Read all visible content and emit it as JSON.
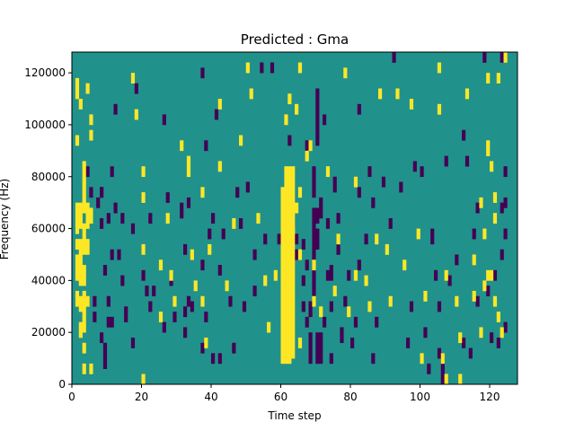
{
  "chart_data": {
    "type": "heatmap",
    "title": "Predicted : Gma",
    "xlabel": "Time step",
    "ylabel": "Frequency (Hz)",
    "xlim": [
      0,
      128
    ],
    "ylim": [
      0,
      128000
    ],
    "x_ticks": [
      0,
      20,
      40,
      60,
      80,
      100,
      120
    ],
    "y_ticks": [
      0,
      20000,
      40000,
      60000,
      80000,
      100000,
      120000
    ],
    "x_tick_labels": [
      "0",
      "20",
      "40",
      "60",
      "80",
      "100",
      "120"
    ],
    "y_tick_labels": [
      "0",
      "20000",
      "40000",
      "60000",
      "80000",
      "100000",
      "120000"
    ],
    "grid": false,
    "values_legend": {
      "low": -1,
      "mid": 0,
      "high": 1
    },
    "colors": {
      "low": "#440154",
      "mid": "#21918c",
      "high": "#fde725"
    },
    "cells": {
      "high": [
        [
          1,
          58000,
          70000
        ],
        [
          1,
          52000,
          56000
        ],
        [
          1,
          40000,
          50000
        ],
        [
          1,
          30000,
          36000
        ],
        [
          2,
          60000,
          70000
        ],
        [
          2,
          38000,
          56000
        ],
        [
          2,
          28000,
          34000
        ],
        [
          2,
          18000,
          24000
        ],
        [
          3,
          66000,
          86000
        ],
        [
          3,
          50000,
          62000
        ],
        [
          3,
          38000,
          46000
        ],
        [
          3,
          20000,
          36000
        ],
        [
          3,
          12000,
          16000
        ],
        [
          3,
          4000,
          8000
        ],
        [
          4,
          60000,
          70000
        ],
        [
          4,
          50000,
          56000
        ],
        [
          4,
          30000,
          34000
        ],
        [
          5,
          62000,
          68000
        ],
        [
          5,
          4000,
          8000
        ],
        [
          1,
          110000,
          118000
        ],
        [
          2,
          106000,
          110000
        ],
        [
          4,
          112000,
          116000
        ],
        [
          5,
          100000,
          104000
        ],
        [
          5,
          94000,
          98000
        ],
        [
          1,
          92000,
          96000
        ],
        [
          17,
          116000,
          120000
        ],
        [
          18,
          102000,
          106000
        ],
        [
          20,
          80000,
          84000
        ],
        [
          20,
          70000,
          74000
        ],
        [
          20,
          50000,
          54000
        ],
        [
          20,
          0,
          4000
        ],
        [
          25,
          44000,
          48000
        ],
        [
          25,
          24000,
          28000
        ],
        [
          27,
          62000,
          66000
        ],
        [
          28,
          40000,
          44000
        ],
        [
          29,
          30000,
          34000
        ],
        [
          31,
          90000,
          94000
        ],
        [
          33,
          84000,
          88000
        ],
        [
          33,
          80000,
          84000
        ],
        [
          34,
          48000,
          52000
        ],
        [
          35,
          36000,
          40000
        ],
        [
          37,
          72000,
          76000
        ],
        [
          37,
          30000,
          34000
        ],
        [
          38,
          14000,
          18000
        ],
        [
          39,
          50000,
          54000
        ],
        [
          42,
          106000,
          110000
        ],
        [
          42,
          82000,
          86000
        ],
        [
          44,
          36000,
          40000
        ],
        [
          46,
          60000,
          64000
        ],
        [
          48,
          92000,
          96000
        ],
        [
          50,
          120000,
          124000
        ],
        [
          51,
          110000,
          114000
        ],
        [
          53,
          62000,
          66000
        ],
        [
          55,
          38000,
          42000
        ],
        [
          56,
          20000,
          24000
        ],
        [
          58,
          40000,
          44000
        ],
        [
          60,
          8000,
          76000
        ],
        [
          61,
          8000,
          84000
        ],
        [
          62,
          8000,
          84000
        ],
        [
          63,
          10000,
          60000
        ],
        [
          63,
          58000,
          84000
        ],
        [
          61,
          100000,
          104000
        ],
        [
          62,
          108000,
          112000
        ],
        [
          64,
          104000,
          108000
        ],
        [
          64,
          66000,
          70000
        ],
        [
          65,
          14000,
          18000
        ],
        [
          65,
          48000,
          52000
        ],
        [
          65,
          72000,
          76000
        ],
        [
          65,
          120000,
          124000
        ],
        [
          67,
          86000,
          90000
        ],
        [
          68,
          90000,
          94000
        ],
        [
          69,
          30000,
          34000
        ],
        [
          69,
          44000,
          48000
        ],
        [
          71,
          26000,
          30000
        ],
        [
          73,
          80000,
          84000
        ],
        [
          75,
          34000,
          38000
        ],
        [
          76,
          54000,
          58000
        ],
        [
          78,
          118000,
          122000
        ],
        [
          79,
          26000,
          30000
        ],
        [
          81,
          40000,
          44000
        ],
        [
          81,
          76000,
          80000
        ],
        [
          84,
          38000,
          42000
        ],
        [
          85,
          28000,
          32000
        ],
        [
          87,
          54000,
          58000
        ],
        [
          88,
          110000,
          114000
        ],
        [
          90,
          50000,
          54000
        ],
        [
          91,
          30000,
          34000
        ],
        [
          93,
          110000,
          114000
        ],
        [
          95,
          44000,
          48000
        ],
        [
          97,
          106000,
          110000
        ],
        [
          99,
          56000,
          60000
        ],
        [
          100,
          8000,
          12000
        ],
        [
          101,
          32000,
          36000
        ],
        [
          105,
          120000,
          124000
        ],
        [
          105,
          104000,
          108000
        ],
        [
          106,
          8000,
          12000
        ],
        [
          107,
          0,
          4000
        ],
        [
          107,
          40000,
          44000
        ],
        [
          110,
          30000,
          34000
        ],
        [
          111,
          16000,
          20000
        ],
        [
          111,
          0,
          4000
        ],
        [
          113,
          110000,
          114000
        ],
        [
          115,
          46000,
          50000
        ],
        [
          117,
          68000,
          72000
        ],
        [
          117,
          18000,
          22000
        ],
        [
          119,
          40000,
          44000
        ],
        [
          118,
          56000,
          60000
        ],
        [
          119,
          88000,
          94000
        ],
        [
          120,
          82000,
          86000
        ],
        [
          121,
          70000,
          74000
        ],
        [
          121,
          30000,
          34000
        ],
        [
          121,
          62000,
          66000
        ],
        [
          122,
          116000,
          120000
        ],
        [
          123,
          18000,
          22000
        ],
        [
          124,
          124000,
          128000
        ],
        [
          120,
          40000,
          44000
        ],
        [
          119,
          116000,
          120000
        ],
        [
          122,
          24000,
          28000
        ],
        [
          115,
          32000,
          36000
        ],
        [
          118,
          36000,
          40000
        ]
      ],
      "low": [
        [
          4,
          80000,
          84000
        ],
        [
          5,
          72000,
          76000
        ],
        [
          7,
          68000,
          72000
        ],
        [
          8,
          72000,
          76000
        ],
        [
          8,
          16000,
          20000
        ],
        [
          8,
          60000,
          64000
        ],
        [
          9,
          6000,
          16000
        ],
        [
          9,
          42000,
          46000
        ],
        [
          10,
          22000,
          26000
        ],
        [
          10,
          30000,
          34000
        ],
        [
          10,
          62000,
          66000
        ],
        [
          11,
          48000,
          52000
        ],
        [
          11,
          22000,
          26000
        ],
        [
          12,
          66000,
          70000
        ],
        [
          12,
          104000,
          108000
        ],
        [
          13,
          48000,
          52000
        ],
        [
          14,
          38000,
          42000
        ],
        [
          15,
          24000,
          30000
        ],
        [
          17,
          58000,
          62000
        ],
        [
          17,
          14000,
          18000
        ],
        [
          18,
          112000,
          116000
        ],
        [
          20,
          40000,
          44000
        ],
        [
          21,
          34000,
          38000
        ],
        [
          22,
          28000,
          32000
        ],
        [
          22,
          62000,
          66000
        ],
        [
          23,
          34000,
          38000
        ],
        [
          26,
          100000,
          104000
        ],
        [
          26,
          20000,
          24000
        ],
        [
          27,
          70000,
          74000
        ],
        [
          28,
          38000,
          42000
        ],
        [
          29,
          24000,
          28000
        ],
        [
          31,
          64000,
          70000
        ],
        [
          32,
          50000,
          54000
        ],
        [
          32,
          18000,
          22000
        ],
        [
          32,
          26000,
          30000
        ],
        [
          33,
          30000,
          34000
        ],
        [
          33,
          68000,
          72000
        ],
        [
          34,
          28000,
          32000
        ],
        [
          37,
          12000,
          16000
        ],
        [
          37,
          44000,
          48000
        ],
        [
          37,
          118000,
          122000
        ],
        [
          38,
          90000,
          94000
        ],
        [
          39,
          56000,
          60000
        ],
        [
          38,
          24000,
          28000
        ],
        [
          40,
          8000,
          12000
        ],
        [
          40,
          62000,
          66000
        ],
        [
          41,
          102000,
          106000
        ],
        [
          42,
          42000,
          46000
        ],
        [
          43,
          56000,
          60000
        ],
        [
          42,
          8000,
          12000
        ],
        [
          45,
          30000,
          34000
        ],
        [
          46,
          12000,
          16000
        ],
        [
          47,
          72000,
          76000
        ],
        [
          48,
          60000,
          64000
        ],
        [
          49,
          28000,
          32000
        ],
        [
          50,
          74000,
          78000
        ],
        [
          52,
          48000,
          52000
        ],
        [
          52,
          34000,
          38000
        ],
        [
          54,
          120000,
          124000
        ],
        [
          55,
          54000,
          58000
        ],
        [
          57,
          120000,
          124000
        ],
        [
          59,
          54000,
          58000
        ],
        [
          60,
          68000,
          72000
        ],
        [
          60,
          14000,
          18000
        ],
        [
          62,
          92000,
          96000
        ],
        [
          64,
          48000,
          52000
        ],
        [
          64,
          54000,
          58000
        ],
        [
          66,
          28000,
          32000
        ],
        [
          66,
          38000,
          42000
        ],
        [
          66,
          52000,
          56000
        ],
        [
          67,
          90000,
          94000
        ],
        [
          67,
          44000,
          48000
        ],
        [
          67,
          22000,
          26000
        ],
        [
          68,
          8000,
          20000
        ],
        [
          68,
          26000,
          32000
        ],
        [
          69,
          72000,
          84000
        ],
        [
          69,
          34000,
          40000
        ],
        [
          69,
          40000,
          68000
        ],
        [
          70,
          8000,
          20000
        ],
        [
          70,
          52000,
          60000
        ],
        [
          70,
          62000,
          68000
        ],
        [
          70,
          92000,
          114000
        ],
        [
          71,
          8000,
          12000
        ],
        [
          71,
          12000,
          20000
        ],
        [
          71,
          64000,
          72000
        ],
        [
          72,
          100000,
          104000
        ],
        [
          72,
          22000,
          26000
        ],
        [
          73,
          60000,
          64000
        ],
        [
          73,
          40000,
          44000
        ],
        [
          74,
          8000,
          12000
        ],
        [
          74,
          28000,
          32000
        ],
        [
          74,
          40000,
          46000
        ],
        [
          75,
          74000,
          80000
        ],
        [
          76,
          62000,
          66000
        ],
        [
          76,
          50000,
          54000
        ],
        [
          77,
          16000,
          22000
        ],
        [
          78,
          30000,
          34000
        ],
        [
          79,
          40000,
          44000
        ],
        [
          80,
          14000,
          18000
        ],
        [
          81,
          22000,
          26000
        ],
        [
          82,
          44000,
          48000
        ],
        [
          82,
          72000,
          76000
        ],
        [
          82,
          104000,
          108000
        ],
        [
          84,
          54000,
          58000
        ],
        [
          85,
          80000,
          84000
        ],
        [
          86,
          68000,
          72000
        ],
        [
          86,
          8000,
          12000
        ],
        [
          87,
          22000,
          26000
        ],
        [
          89,
          76000,
          80000
        ],
        [
          91,
          60000,
          64000
        ],
        [
          92,
          124000,
          128000
        ],
        [
          94,
          74000,
          78000
        ],
        [
          96,
          14000,
          18000
        ],
        [
          97,
          28000,
          32000
        ],
        [
          98,
          82000,
          86000
        ],
        [
          100,
          80000,
          84000
        ],
        [
          101,
          18000,
          22000
        ],
        [
          102,
          4000,
          8000
        ],
        [
          103,
          54000,
          60000
        ],
        [
          104,
          40000,
          44000
        ],
        [
          105,
          28000,
          32000
        ],
        [
          105,
          10000,
          14000
        ],
        [
          106,
          0,
          12000
        ],
        [
          107,
          84000,
          88000
        ],
        [
          108,
          38000,
          42000
        ],
        [
          110,
          46000,
          50000
        ],
        [
          112,
          14000,
          18000
        ],
        [
          112,
          94000,
          98000
        ],
        [
          113,
          84000,
          88000
        ],
        [
          114,
          10000,
          14000
        ],
        [
          115,
          56000,
          60000
        ],
        [
          116,
          30000,
          34000
        ],
        [
          116,
          66000,
          70000
        ],
        [
          118,
          124000,
          128000
        ],
        [
          119,
          34000,
          38000
        ],
        [
          120,
          16000,
          20000
        ],
        [
          121,
          40000,
          44000
        ],
        [
          122,
          14000,
          18000
        ],
        [
          123,
          66000,
          70000
        ],
        [
          124,
          56000,
          60000
        ],
        [
          124,
          20000,
          24000
        ],
        [
          123,
          48000,
          52000
        ],
        [
          124,
          68000,
          72000
        ],
        [
          124,
          80000,
          84000
        ],
        [
          123,
          124000,
          128000
        ],
        [
          6,
          24000,
          28000
        ],
        [
          6,
          30000,
          34000
        ],
        [
          8,
          72000,
          76000
        ],
        [
          11,
          80000,
          84000
        ],
        [
          14,
          62000,
          66000
        ]
      ]
    }
  }
}
